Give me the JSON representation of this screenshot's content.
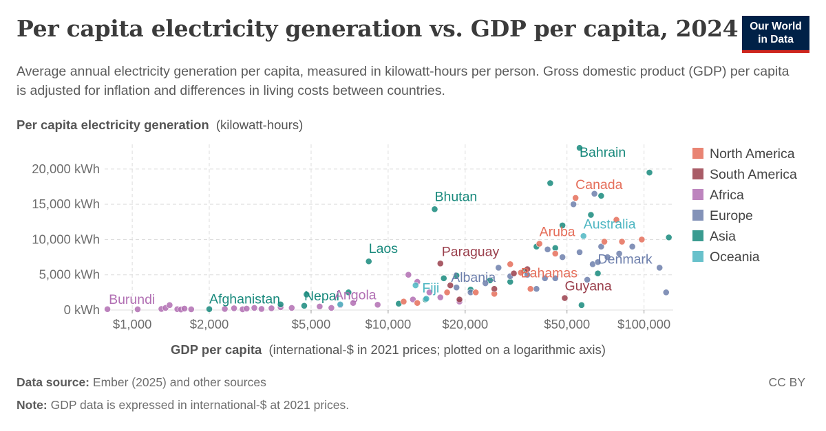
{
  "header": {
    "title": "Per capita electricity generation vs. GDP per capita, 2024",
    "subtitle": "Average annual electricity generation per capita, measured in kilowatt-hours per person. Gross domestic product (GDP) per capita is adjusted for inflation and differences in living costs between countries.",
    "logo_line1": "Our World",
    "logo_line2": "in Data"
  },
  "footer": {
    "source_label": "Data source:",
    "source_text": "Ember (2025) and other sources",
    "note_label": "Note:",
    "note_text": "GDP data is expressed in international-$ at 2021 prices.",
    "license": "CC BY"
  },
  "chart_data": {
    "type": "scatter",
    "ylabel_bold": "Per capita electricity generation",
    "ylabel_rest": "(kilowatt-hours)",
    "xlabel_bold": "GDP per capita",
    "xlabel_rest": "(international-$ in 2021 prices; plotted on a logarithmic axis)",
    "x_scale": "log",
    "xlim": [
      780,
      130000
    ],
    "ylim": [
      0,
      23500
    ],
    "x_ticks": [
      {
        "value": 1000,
        "label": "$1,000"
      },
      {
        "value": 2000,
        "label": "$2,000"
      },
      {
        "value": 5000,
        "label": "$5,000"
      },
      {
        "value": 10000,
        "label": "$10,000"
      },
      {
        "value": 20000,
        "label": "$20,000"
      },
      {
        "value": 50000,
        "label": "$50,000"
      },
      {
        "value": 100000,
        "label": "$100,000"
      }
    ],
    "y_ticks": [
      {
        "value": 0,
        "label": "0 kWh"
      },
      {
        "value": 5000,
        "label": "5,000 kWh"
      },
      {
        "value": 10000,
        "label": "10,000 kWh"
      },
      {
        "value": 15000,
        "label": "15,000 kWh"
      },
      {
        "value": 20000,
        "label": "20,000 kWh"
      }
    ],
    "grid": true,
    "legend_position": "right",
    "regions": [
      {
        "name": "North America",
        "color": "#e56e5a"
      },
      {
        "name": "South America",
        "color": "#9a3f4c"
      },
      {
        "name": "Africa",
        "color": "#b16fb3"
      },
      {
        "name": "Europe",
        "color": "#6d7fac"
      },
      {
        "name": "Asia",
        "color": "#18897c"
      },
      {
        "name": "Oceania",
        "color": "#4eb6c2"
      }
    ],
    "labeled_points": [
      {
        "name": "Burundi",
        "region": "Africa",
        "x": 800,
        "y": 120
      },
      {
        "name": "Afghanistan",
        "region": "Asia",
        "x": 2000,
        "y": 130
      },
      {
        "name": "Nepal",
        "region": "Asia",
        "x": 4700,
        "y": 600
      },
      {
        "name": "Angola",
        "region": "Africa",
        "x": 9100,
        "y": 750
      },
      {
        "name": "Laos",
        "region": "Asia",
        "x": 8400,
        "y": 6900
      },
      {
        "name": "Bhutan",
        "region": "Asia",
        "x": 15200,
        "y": 14300
      },
      {
        "name": "Paraguay",
        "region": "South America",
        "x": 16000,
        "y": 6600
      },
      {
        "name": "Fiji",
        "region": "Oceania",
        "x": 14100,
        "y": 1600
      },
      {
        "name": "Albania",
        "region": "Europe",
        "x": 18500,
        "y": 3200
      },
      {
        "name": "Bahrain",
        "region": "Asia",
        "x": 56000,
        "y": 23000
      },
      {
        "name": "Canada",
        "region": "North America",
        "x": 54000,
        "y": 15900
      },
      {
        "name": "Australia",
        "region": "Oceania",
        "x": 58000,
        "y": 10500
      },
      {
        "name": "Aruba",
        "region": "North America",
        "x": 39000,
        "y": 9400
      },
      {
        "name": "Bahamas",
        "region": "North America",
        "x": 33000,
        "y": 5300
      },
      {
        "name": "Denmark",
        "region": "Europe",
        "x": 66000,
        "y": 6800
      },
      {
        "name": "Guyana",
        "region": "South America",
        "x": 49000,
        "y": 1700
      }
    ],
    "points": [
      {
        "region": "Africa",
        "x": 800,
        "y": 120
      },
      {
        "region": "Africa",
        "x": 1050,
        "y": 100
      },
      {
        "region": "Africa",
        "x": 1300,
        "y": 150
      },
      {
        "region": "Africa",
        "x": 1350,
        "y": 300
      },
      {
        "region": "Africa",
        "x": 1400,
        "y": 700
      },
      {
        "region": "Africa",
        "x": 1500,
        "y": 120
      },
      {
        "region": "Africa",
        "x": 1550,
        "y": 80
      },
      {
        "region": "Africa",
        "x": 1600,
        "y": 200
      },
      {
        "region": "Africa",
        "x": 1700,
        "y": 100
      },
      {
        "region": "Africa",
        "x": 2300,
        "y": 150
      },
      {
        "region": "Africa",
        "x": 2500,
        "y": 250
      },
      {
        "region": "Africa",
        "x": 2700,
        "y": 100
      },
      {
        "region": "Africa",
        "x": 2800,
        "y": 200
      },
      {
        "region": "Africa",
        "x": 3000,
        "y": 300
      },
      {
        "region": "Africa",
        "x": 3200,
        "y": 150
      },
      {
        "region": "Africa",
        "x": 3500,
        "y": 250
      },
      {
        "region": "Africa",
        "x": 3800,
        "y": 400
      },
      {
        "region": "Africa",
        "x": 4200,
        "y": 300
      },
      {
        "region": "Africa",
        "x": 5400,
        "y": 500
      },
      {
        "region": "Africa",
        "x": 6000,
        "y": 300
      },
      {
        "region": "Africa",
        "x": 6500,
        "y": 700
      },
      {
        "region": "Africa",
        "x": 7300,
        "y": 1000
      },
      {
        "region": "Africa",
        "x": 9100,
        "y": 750
      },
      {
        "region": "Africa",
        "x": 12000,
        "y": 5000
      },
      {
        "region": "Africa",
        "x": 13000,
        "y": 4000
      },
      {
        "region": "Africa",
        "x": 14500,
        "y": 2500
      },
      {
        "region": "Africa",
        "x": 16000,
        "y": 1800
      },
      {
        "region": "Africa",
        "x": 19000,
        "y": 1200
      },
      {
        "region": "Africa",
        "x": 12500,
        "y": 1500
      },
      {
        "region": "Asia",
        "x": 2000,
        "y": 130
      },
      {
        "region": "Asia",
        "x": 3800,
        "y": 800
      },
      {
        "region": "Asia",
        "x": 4700,
        "y": 600
      },
      {
        "region": "Asia",
        "x": 4800,
        "y": 2200
      },
      {
        "region": "Asia",
        "x": 7000,
        "y": 2500
      },
      {
        "region": "Asia",
        "x": 8400,
        "y": 6900
      },
      {
        "region": "Asia",
        "x": 11000,
        "y": 900
      },
      {
        "region": "Asia",
        "x": 14000,
        "y": 1500
      },
      {
        "region": "Asia",
        "x": 15200,
        "y": 14300
      },
      {
        "region": "Asia",
        "x": 16500,
        "y": 4500
      },
      {
        "region": "Asia",
        "x": 18500,
        "y": 4900
      },
      {
        "region": "Asia",
        "x": 21000,
        "y": 2900
      },
      {
        "region": "Asia",
        "x": 25000,
        "y": 4200
      },
      {
        "region": "Asia",
        "x": 30000,
        "y": 4000
      },
      {
        "region": "Asia",
        "x": 34000,
        "y": 5500
      },
      {
        "region": "Asia",
        "x": 38000,
        "y": 9000
      },
      {
        "region": "Asia",
        "x": 43000,
        "y": 18000
      },
      {
        "region": "Asia",
        "x": 45000,
        "y": 8800
      },
      {
        "region": "Asia",
        "x": 48000,
        "y": 12000
      },
      {
        "region": "Asia",
        "x": 56000,
        "y": 23000
      },
      {
        "region": "Asia",
        "x": 62000,
        "y": 13500
      },
      {
        "region": "Asia",
        "x": 68000,
        "y": 16200
      },
      {
        "region": "Asia",
        "x": 57000,
        "y": 700
      },
      {
        "region": "Asia",
        "x": 66000,
        "y": 5200
      },
      {
        "region": "Asia",
        "x": 105000,
        "y": 19500
      },
      {
        "region": "Asia",
        "x": 125000,
        "y": 10300
      },
      {
        "region": "Europe",
        "x": 18500,
        "y": 3200
      },
      {
        "region": "Europe",
        "x": 21000,
        "y": 2500
      },
      {
        "region": "Europe",
        "x": 24000,
        "y": 3800
      },
      {
        "region": "Europe",
        "x": 27000,
        "y": 6000
      },
      {
        "region": "Europe",
        "x": 30000,
        "y": 4800
      },
      {
        "region": "Europe",
        "x": 35000,
        "y": 5000
      },
      {
        "region": "Europe",
        "x": 38000,
        "y": 3000
      },
      {
        "region": "Europe",
        "x": 41000,
        "y": 4500
      },
      {
        "region": "Europe",
        "x": 42000,
        "y": 8600
      },
      {
        "region": "Europe",
        "x": 45000,
        "y": 4500
      },
      {
        "region": "Europe",
        "x": 48000,
        "y": 7500
      },
      {
        "region": "Europe",
        "x": 53000,
        "y": 15000
      },
      {
        "region": "Europe",
        "x": 56000,
        "y": 8200
      },
      {
        "region": "Europe",
        "x": 60000,
        "y": 4300
      },
      {
        "region": "Europe",
        "x": 63000,
        "y": 6500
      },
      {
        "region": "Europe",
        "x": 66000,
        "y": 6800
      },
      {
        "region": "Europe",
        "x": 68000,
        "y": 9000
      },
      {
        "region": "Europe",
        "x": 72000,
        "y": 7500
      },
      {
        "region": "Europe",
        "x": 80000,
        "y": 8000
      },
      {
        "region": "Europe",
        "x": 90000,
        "y": 9000
      },
      {
        "region": "Europe",
        "x": 115000,
        "y": 6000
      },
      {
        "region": "Europe",
        "x": 122000,
        "y": 2500
      },
      {
        "region": "Europe",
        "x": 64000,
        "y": 16500
      },
      {
        "region": "North America",
        "x": 11500,
        "y": 1200
      },
      {
        "region": "North America",
        "x": 13000,
        "y": 1000
      },
      {
        "region": "North America",
        "x": 17000,
        "y": 2500
      },
      {
        "region": "North America",
        "x": 22000,
        "y": 2500
      },
      {
        "region": "North America",
        "x": 26000,
        "y": 2300
      },
      {
        "region": "North America",
        "x": 30000,
        "y": 6500
      },
      {
        "region": "North America",
        "x": 33000,
        "y": 5300
      },
      {
        "region": "North America",
        "x": 36000,
        "y": 3000
      },
      {
        "region": "North America",
        "x": 39000,
        "y": 9400
      },
      {
        "region": "North America",
        "x": 45000,
        "y": 8000
      },
      {
        "region": "North America",
        "x": 54000,
        "y": 15900
      },
      {
        "region": "North America",
        "x": 70000,
        "y": 9700
      },
      {
        "region": "North America",
        "x": 78000,
        "y": 12800
      },
      {
        "region": "North America",
        "x": 82000,
        "y": 9700
      },
      {
        "region": "North America",
        "x": 98000,
        "y": 10000
      },
      {
        "region": "South America",
        "x": 16000,
        "y": 6600
      },
      {
        "region": "South America",
        "x": 17500,
        "y": 3500
      },
      {
        "region": "South America",
        "x": 19000,
        "y": 1500
      },
      {
        "region": "South America",
        "x": 26000,
        "y": 3000
      },
      {
        "region": "South America",
        "x": 31000,
        "y": 5200
      },
      {
        "region": "South America",
        "x": 35000,
        "y": 5800
      },
      {
        "region": "South America",
        "x": 49000,
        "y": 1700
      },
      {
        "region": "Oceania",
        "x": 6500,
        "y": 800
      },
      {
        "region": "Oceania",
        "x": 12800,
        "y": 3500
      },
      {
        "region": "Oceania",
        "x": 14100,
        "y": 1600
      },
      {
        "region": "Oceania",
        "x": 58000,
        "y": 10500
      }
    ]
  }
}
